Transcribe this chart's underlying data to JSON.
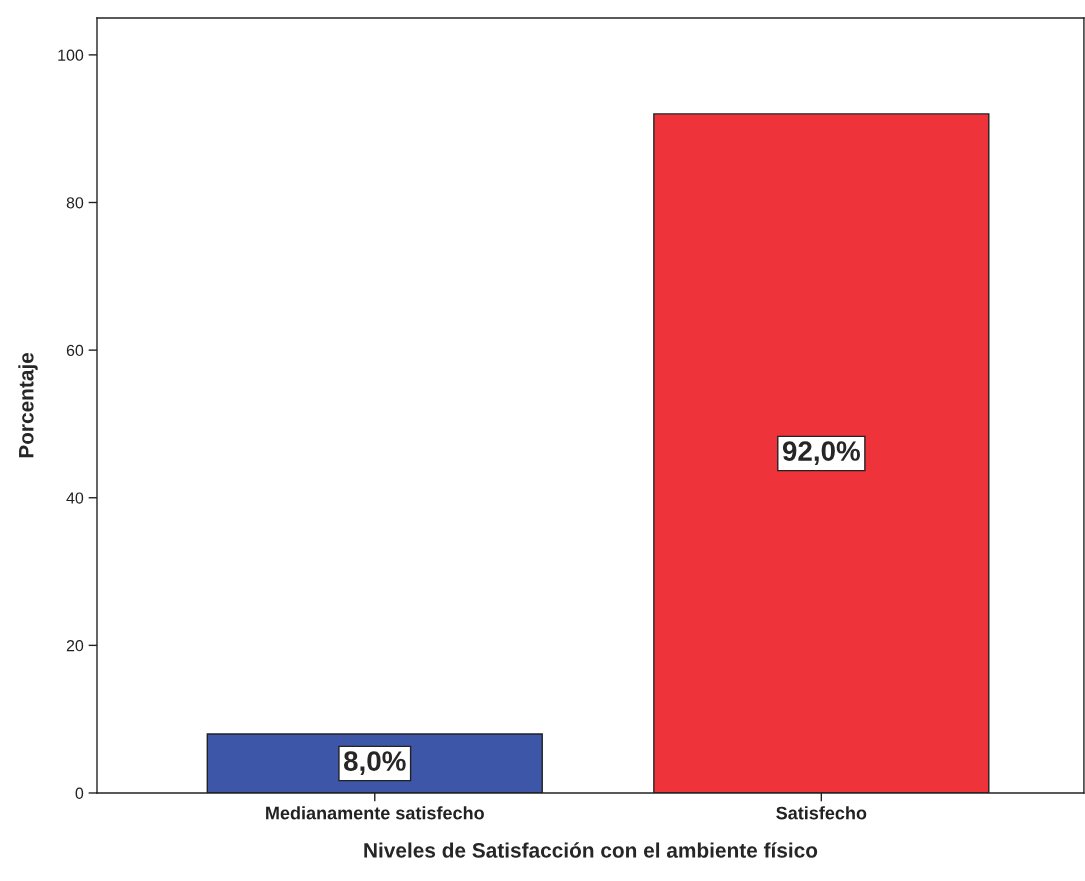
{
  "chart_data": {
    "type": "bar",
    "xlabel": "Niveles de Satisfacción con el ambiente físico",
    "ylabel": "Porcentaje",
    "categories": [
      "Medianamente satisfecho",
      "Satisfecho"
    ],
    "values": [
      8.0,
      92.0
    ],
    "colors": [
      "#3e56a8",
      "#ee333b"
    ],
    "value_labels": [
      "8,0%",
      "92,0%"
    ],
    "ylim": [
      0,
      105
    ],
    "yticks": [
      0,
      20,
      40,
      60,
      80,
      100
    ],
    "grid": false
  }
}
